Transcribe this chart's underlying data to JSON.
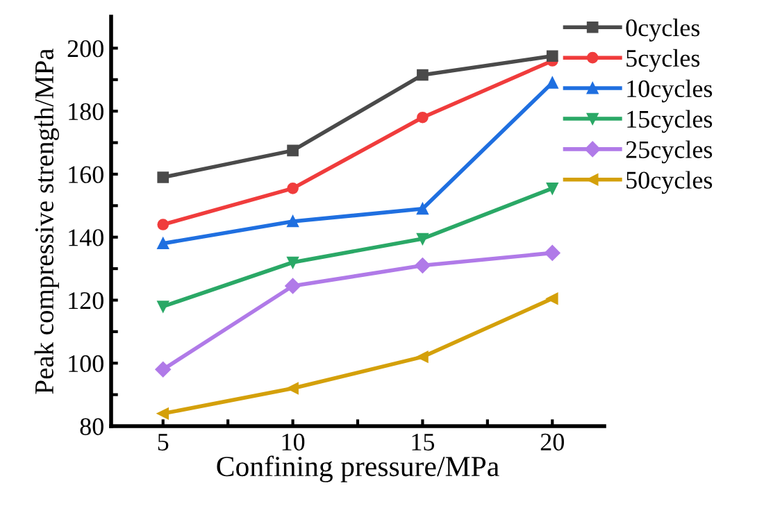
{
  "chart_data": {
    "type": "line",
    "xlabel": "Confining pressure/MPa",
    "ylabel": "Peak compressive strength/MPa",
    "x": [
      5,
      10,
      15,
      20
    ],
    "xlim": [
      3,
      22
    ],
    "xticks": [
      5,
      {
        "value": 7.5,
        "label": null
      },
      10,
      {
        "value": 12.5,
        "label": null
      },
      15,
      {
        "value": 17.5,
        "label": null
      },
      20
    ],
    "ylim": [
      80,
      210
    ],
    "yticks": [
      80,
      {
        "value": 90,
        "label": null
      },
      100,
      {
        "value": 110,
        "label": null
      },
      120,
      {
        "value": 130,
        "label": null
      },
      140,
      {
        "value": 150,
        "label": null
      },
      160,
      {
        "value": 170,
        "label": null
      },
      180,
      {
        "value": 190,
        "label": null
      },
      200
    ],
    "grid": false,
    "legend": "right",
    "line_style": "solid",
    "series": [
      {
        "name": "0cycles",
        "color": "#4a4a4a",
        "marker": "square",
        "values": [
          159,
          167.5,
          191.5,
          197.5
        ]
      },
      {
        "name": "5cycles",
        "color": "#f03c3c",
        "marker": "circle",
        "values": [
          144,
          155.5,
          178,
          196
        ]
      },
      {
        "name": "10cycles",
        "color": "#1f6fe0",
        "marker": "triangle",
        "values": [
          138,
          145,
          149,
          189
        ]
      },
      {
        "name": "15cycles",
        "color": "#2aa866",
        "marker": "triangle_down",
        "values": [
          118,
          132,
          139.5,
          155.5
        ]
      },
      {
        "name": "25cycles",
        "color": "#b07ae8",
        "marker": "diamond",
        "values": [
          98,
          124.5,
          131,
          135
        ]
      },
      {
        "name": "50cycles",
        "color": "#d4a00a",
        "marker": "triangle_left",
        "values": [
          84,
          92,
          102,
          120.5
        ]
      }
    ]
  }
}
